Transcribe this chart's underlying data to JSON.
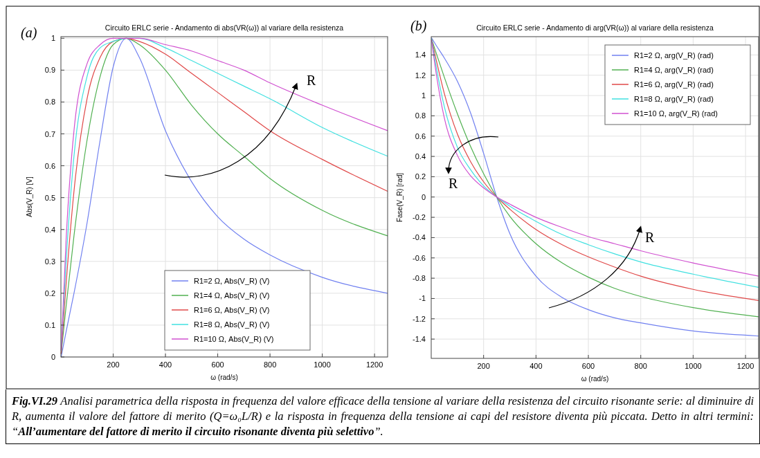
{
  "chart_data": [
    {
      "type": "line",
      "title": "Circuito ERLC serie - Andamento di abs(VR(ω)) al variare della resistenza",
      "xlabel": "ω (rad/s)",
      "ylabel": "Abs(V_R) [V]",
      "x": [
        1,
        20,
        50,
        100,
        150,
        200,
        250,
        300,
        400,
        500,
        600,
        700,
        800,
        1000,
        1250
      ],
      "series": [
        {
          "name": "R1=2 Ω, Abs(V_R) (V)",
          "color": "#7080f0",
          "values": [
            0,
            0.08,
            0.2,
            0.42,
            0.68,
            0.91,
            1,
            0.94,
            0.71,
            0.55,
            0.44,
            0.37,
            0.32,
            0.25,
            0.2
          ]
        },
        {
          "name": "R1=4 Ω, Abs(V_R) (V)",
          "color": "#50b050",
          "values": [
            0.01,
            0.16,
            0.38,
            0.68,
            0.88,
            0.98,
            1,
            0.98,
            0.9,
            0.79,
            0.7,
            0.63,
            0.56,
            0.46,
            0.38
          ]
        },
        {
          "name": "R1=6 Ω, Abs(V_R) (V)",
          "color": "#e04848",
          "values": [
            0.01,
            0.23,
            0.52,
            0.81,
            0.94,
            0.99,
            1,
            0.99,
            0.95,
            0.89,
            0.83,
            0.77,
            0.71,
            0.62,
            0.52
          ]
        },
        {
          "name": "R1=8 Ω, Abs(V_R) (V)",
          "color": "#40e0e0",
          "values": [
            0.02,
            0.3,
            0.63,
            0.88,
            0.97,
            0.99,
            1,
            1,
            0.97,
            0.93,
            0.89,
            0.85,
            0.81,
            0.72,
            0.63
          ]
        },
        {
          "name": "R1=10 Ω, Abs(V_R) (V)",
          "color": "#d050d0",
          "values": [
            0.02,
            0.37,
            0.71,
            0.92,
            0.98,
            1,
            1,
            1,
            0.98,
            0.96,
            0.93,
            0.9,
            0.86,
            0.79,
            0.71
          ]
        }
      ],
      "xlim": [
        0,
        1250
      ],
      "xticks": [
        200,
        400,
        600,
        800,
        1000,
        1200
      ],
      "ylim": [
        0,
        1.005
      ],
      "yticks": [
        0,
        0.1,
        0.2,
        0.3,
        0.4,
        0.5,
        0.6,
        0.7,
        0.8,
        0.9,
        1
      ],
      "grid": true,
      "legend": "bottom right",
      "line_style": "solid",
      "annotations": [
        "(a)",
        "R"
      ]
    },
    {
      "type": "line",
      "title": "Circuito ERLC serie - Andamento di arg(VR(ω)) al variare della resistenza",
      "xlabel": "ω (rad/s)",
      "ylabel": "Fase(V_R) [rad]",
      "x": [
        1,
        20,
        50,
        100,
        150,
        200,
        250,
        300,
        400,
        500,
        600,
        700,
        800,
        1000,
        1250
      ],
      "series": [
        {
          "name": "R1=2 Ω, arg(V_R) (rad)",
          "color": "#7080f0",
          "values": [
            1.57,
            1.49,
            1.37,
            1.14,
            0.83,
            0.43,
            0,
            -0.36,
            -0.78,
            -0.99,
            -1.11,
            -1.19,
            -1.24,
            -1.32,
            -1.37
          ]
        },
        {
          "name": "R1=4 Ω, arg(V_R) (rad)",
          "color": "#50b050",
          "values": [
            1.56,
            1.41,
            1.18,
            0.82,
            0.5,
            0.23,
            0,
            -0.19,
            -0.46,
            -0.65,
            -0.79,
            -0.9,
            -0.98,
            -1.09,
            -1.18
          ]
        },
        {
          "name": "R1=6 Ω, arg(V_R) (rad)",
          "color": "#e04848",
          "values": [
            1.56,
            1.34,
            1.02,
            0.62,
            0.35,
            0.15,
            0,
            -0.12,
            -0.32,
            -0.47,
            -0.59,
            -0.69,
            -0.78,
            -0.91,
            -1.02
          ]
        },
        {
          "name": "R1=8 Ω, arg(V_R) (rad)",
          "color": "#40e0e0",
          "values": [
            1.56,
            1.27,
            0.89,
            0.49,
            0.27,
            0.11,
            0,
            -0.09,
            -0.24,
            -0.37,
            -0.47,
            -0.56,
            -0.64,
            -0.76,
            -0.89
          ]
        },
        {
          "name": "R1=10 Ω, arg(V_R) (rad)",
          "color": "#d050d0",
          "values": [
            1.55,
            1.2,
            0.78,
            0.41,
            0.21,
            0.09,
            0,
            -0.07,
            -0.2,
            -0.3,
            -0.39,
            -0.46,
            -0.53,
            -0.65,
            -0.78
          ]
        }
      ],
      "xlim": [
        0,
        1250
      ],
      "xticks": [
        200,
        400,
        600,
        800,
        1000,
        1200
      ],
      "ylim": [
        -1.59,
        1.58
      ],
      "yticks": [
        -1.4,
        -1.2,
        -1,
        -0.8,
        -0.6,
        -0.4,
        -0.2,
        0,
        0.2,
        0.4,
        0.6,
        0.8,
        1,
        1.2,
        1.4
      ],
      "grid": true,
      "legend": "top right",
      "line_style": "solid",
      "annotations": [
        "(b)",
        "R",
        "R",
        "Fig.VI.29",
        "Analisi parametrica della risposta in frequenza del valore efficace della tensione al variare della resistenza del circuito risonante serie: al diminuire di R, aumenta il valore del fattore di merito (Q=ω₀L/R) e la risposta in frequenza della tensione ai capi del resistore diventa più piccata. Detto in altri termini: “",
        "All’aumentare del fattore di merito il circuito risonante diventa più selettivo",
        "”."
      ]
    }
  ]
}
